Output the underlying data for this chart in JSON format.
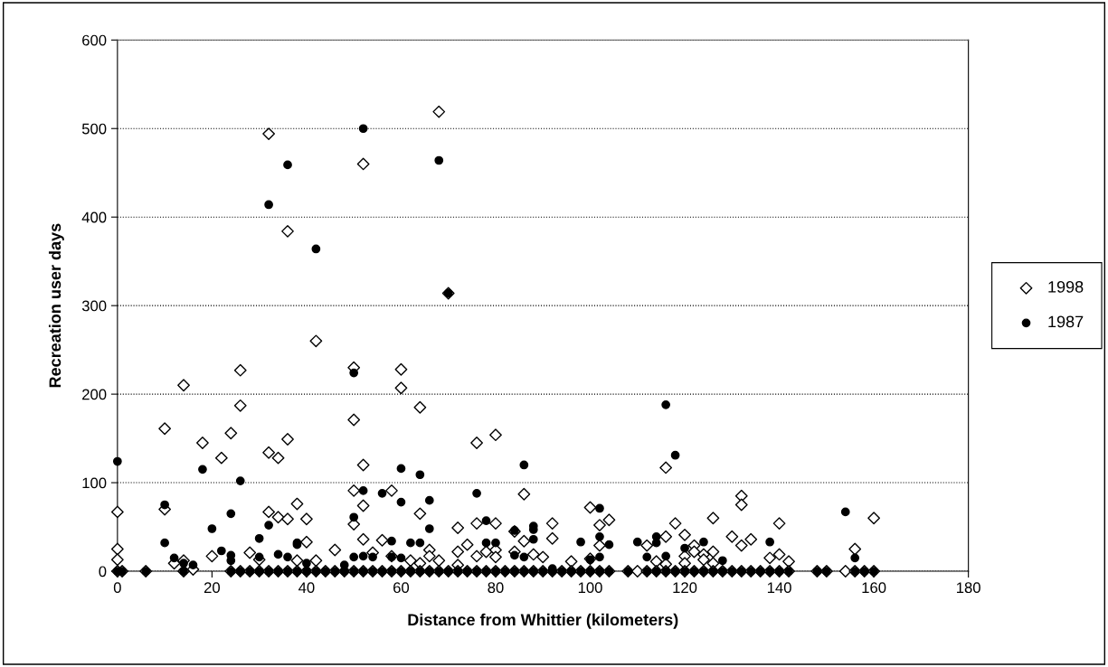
{
  "chart_data": {
    "type": "scatter",
    "xlabel": "Distance from Whittier (kilometers)",
    "ylabel": "Recreation user days",
    "xlim": [
      0,
      180
    ],
    "xticks": [
      0,
      20,
      40,
      60,
      80,
      100,
      120,
      140,
      160,
      180
    ],
    "ylim": [
      0,
      600
    ],
    "yticks": [
      0,
      100,
      200,
      300,
      400,
      500,
      600
    ],
    "grid": "y",
    "legend": "right",
    "series": [
      {
        "name": "1998",
        "color": "#000000",
        "marker": "diamond",
        "x": [
          0,
          0,
          0,
          10,
          10,
          12,
          14,
          14,
          16,
          18,
          20,
          22,
          24,
          26,
          26,
          28,
          30,
          32,
          32,
          32,
          34,
          34,
          36,
          36,
          36,
          38,
          38,
          40,
          40,
          42,
          42,
          46,
          50,
          50,
          50,
          50,
          52,
          52,
          52,
          52,
          54,
          56,
          58,
          58,
          60,
          60,
          62,
          64,
          64,
          64,
          66,
          66,
          68,
          68,
          70,
          72,
          72,
          72,
          74,
          76,
          76,
          76,
          78,
          80,
          80,
          80,
          80,
          84,
          84,
          86,
          86,
          88,
          90,
          92,
          92,
          96,
          100,
          100,
          102,
          102,
          104,
          112,
          114,
          116,
          116,
          116,
          118,
          120,
          120,
          120,
          122,
          122,
          124,
          124,
          126,
          126,
          126,
          130,
          132,
          132,
          132,
          134,
          138,
          140,
          140,
          142,
          156,
          160,
          0,
          1,
          6,
          14,
          24,
          26,
          28,
          30,
          32,
          34,
          36,
          38,
          40,
          42,
          44,
          46,
          48,
          50,
          52,
          54,
          56,
          58,
          60,
          62,
          64,
          66,
          68,
          70,
          72,
          74,
          76,
          78,
          80,
          82,
          84,
          86,
          88,
          90,
          92,
          94,
          96,
          98,
          100,
          102,
          104,
          108,
          110,
          112,
          114,
          116,
          118,
          120,
          122,
          124,
          126,
          128,
          130,
          132,
          134,
          136,
          138,
          140,
          142,
          148,
          150,
          154,
          156,
          158,
          160
        ],
        "values": [
          67,
          25,
          13,
          161,
          70,
          9,
          210,
          12,
          2,
          145,
          17,
          128,
          156,
          227,
          187,
          21,
          13,
          494,
          134,
          67,
          128,
          61,
          384,
          149,
          59,
          76,
          12,
          59,
          33,
          260,
          12,
          24,
          230,
          171,
          91,
          53,
          460,
          120,
          74,
          36,
          21,
          35,
          91,
          17,
          228,
          207,
          12,
          185,
          65,
          9,
          24,
          17,
          519,
          12,
          314,
          49,
          22,
          7,
          30,
          145,
          54,
          17,
          22,
          154,
          54,
          24,
          16,
          45,
          22,
          87,
          34,
          19,
          16,
          54,
          37,
          11,
          72,
          14,
          52,
          29,
          58,
          29,
          11,
          117,
          39,
          8,
          54,
          41,
          17,
          9,
          29,
          22,
          19,
          13,
          60,
          22,
          9,
          39,
          85,
          75,
          29,
          36,
          15,
          54,
          19,
          11,
          25,
          60,
          0,
          0,
          0,
          0,
          0,
          0,
          0,
          0,
          0,
          0,
          0,
          0,
          0,
          0,
          0,
          0,
          0,
          0,
          0,
          0,
          0,
          0,
          0,
          0,
          0,
          0,
          0,
          0,
          0,
          0,
          0,
          0,
          0,
          0,
          0,
          0,
          0,
          0,
          0,
          0,
          0,
          0,
          0,
          0,
          0,
          0,
          0,
          0,
          0,
          0,
          0,
          0,
          0,
          0,
          0,
          0,
          0,
          0,
          0,
          0,
          0,
          0,
          0,
          0,
          0,
          0,
          0,
          0,
          0
        ]
      },
      {
        "name": "1987",
        "color": "#000000",
        "marker": "circle",
        "x": [
          0,
          10,
          10,
          12,
          14,
          16,
          18,
          20,
          22,
          24,
          24,
          24,
          26,
          30,
          30,
          32,
          32,
          34,
          36,
          36,
          38,
          38,
          40,
          42,
          48,
          50,
          50,
          50,
          52,
          52,
          52,
          54,
          56,
          58,
          58,
          60,
          60,
          60,
          62,
          64,
          64,
          66,
          66,
          68,
          70,
          76,
          78,
          78,
          80,
          84,
          84,
          86,
          86,
          88,
          88,
          88,
          92,
          98,
          100,
          102,
          102,
          102,
          104,
          110,
          112,
          114,
          114,
          116,
          116,
          118,
          120,
          124,
          128,
          138,
          154,
          156,
          0,
          1,
          6,
          14,
          24,
          26,
          28,
          30,
          32,
          34,
          36,
          38,
          40,
          42,
          44,
          46,
          48,
          50,
          52,
          54,
          56,
          58,
          60,
          62,
          64,
          66,
          68,
          70,
          72,
          74,
          76,
          78,
          80,
          82,
          84,
          86,
          88,
          90,
          92,
          94,
          96,
          98,
          100,
          102,
          104,
          108,
          112,
          114,
          116,
          118,
          120,
          122,
          124,
          126,
          128,
          130,
          132,
          134,
          136,
          138,
          140,
          142,
          148,
          150,
          156,
          158,
          160
        ],
        "values": [
          124,
          75,
          32,
          15,
          9,
          7,
          115,
          48,
          23,
          65,
          18,
          12,
          102,
          37,
          16,
          414,
          52,
          19,
          459,
          16,
          32,
          30,
          9,
          364,
          7,
          224,
          61,
          16,
          500,
          91,
          17,
          16,
          88,
          34,
          16,
          116,
          78,
          15,
          32,
          109,
          32,
          80,
          48,
          464,
          314,
          88,
          57,
          32,
          32,
          46,
          18,
          120,
          16,
          51,
          47,
          36,
          3,
          33,
          13,
          71,
          39,
          16,
          30,
          33,
          16,
          39,
          32,
          188,
          17,
          131,
          26,
          33,
          12,
          33,
          67,
          15,
          0,
          0,
          0,
          0,
          0,
          0,
          0,
          0,
          0,
          0,
          0,
          0,
          0,
          0,
          0,
          0,
          0,
          0,
          0,
          0,
          0,
          0,
          0,
          0,
          0,
          0,
          0,
          0,
          0,
          0,
          0,
          0,
          0,
          0,
          0,
          0,
          0,
          0,
          0,
          0,
          0,
          0,
          0,
          0,
          0,
          0,
          0,
          0,
          0,
          0,
          0,
          0,
          0,
          0,
          0,
          0,
          0,
          0,
          0,
          0,
          0,
          0,
          0,
          0,
          0,
          0,
          0
        ]
      }
    ]
  }
}
